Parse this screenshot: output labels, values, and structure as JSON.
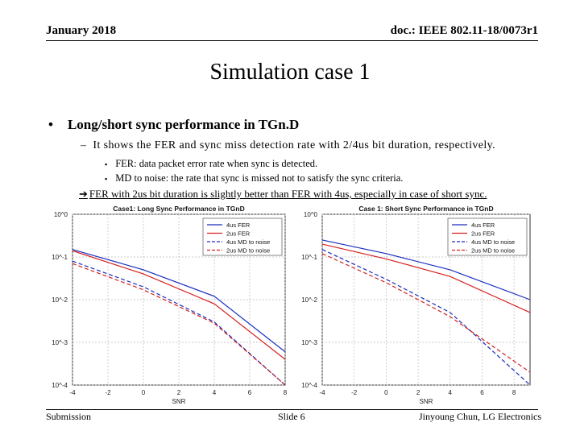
{
  "header": {
    "date": "January 2018",
    "doc_id": "doc.: IEEE 802.11-18/0073r1"
  },
  "title": "Simulation case 1",
  "bullet": {
    "marker": "•",
    "text": "Long/short sync performance in TGn.D"
  },
  "sub_bullet": {
    "marker": "–",
    "text": "It shows the FER and sync miss detection rate with 2/4us bit duration, respectively."
  },
  "sub_sub_bullets": [
    {
      "marker": "▪",
      "text": "FER: data packet error rate when sync is detected."
    },
    {
      "marker": "▪",
      "text": "MD to noise: the rate that sync is missed not to satisfy the sync criteria."
    }
  ],
  "conclusion": {
    "marker": "➔",
    "text": "FER with 2us bit duration is slightly better than FER with 4us, especially in case of short sync."
  },
  "footer": {
    "left": "Submission",
    "center": "Slide 6",
    "right": "Jinyoung Chun, LG Electronics"
  },
  "colors": {
    "blue": "#1a2fbf",
    "red": "#d42020"
  },
  "chart_data": [
    {
      "type": "line",
      "title": "Case1: Long Sync Performance in TGnD",
      "xlabel": "SNR",
      "ylabel": "",
      "y_scale": "log",
      "xlim": [
        -4,
        8
      ],
      "ylim": [
        0.0001,
        1
      ],
      "x_ticks": [
        "-4",
        "-2",
        "0",
        "2",
        "4",
        "6",
        "8"
      ],
      "y_ticks": [
        "10^0",
        "10^-1",
        "10^-2",
        "10^-3",
        "10^-4"
      ],
      "grid": true,
      "legend_position": "top-right",
      "x": [
        -4,
        0,
        4,
        8
      ],
      "series": [
        {
          "name": "4us FER",
          "color": "blue",
          "dash": false,
          "values": [
            0.15,
            0.05,
            0.012,
            0.0006
          ]
        },
        {
          "name": "2us FER",
          "color": "red",
          "dash": false,
          "values": [
            0.14,
            0.04,
            0.008,
            0.0004
          ]
        },
        {
          "name": "4us MD to noise",
          "color": "blue",
          "dash": true,
          "values": [
            0.08,
            0.02,
            0.003,
            0.0001
          ]
        },
        {
          "name": "2us MD to noise",
          "color": "red",
          "dash": true,
          "values": [
            0.07,
            0.017,
            0.0028,
            0.0001
          ]
        }
      ]
    },
    {
      "type": "line",
      "title": "Case 1: Short Sync Performance in TGnD",
      "xlabel": "SNR",
      "ylabel": "",
      "y_scale": "log",
      "xlim": [
        -4,
        9
      ],
      "ylim": [
        0.0001,
        1
      ],
      "x_ticks": [
        "-4",
        "-2",
        "0",
        "2",
        "4",
        "6",
        "8"
      ],
      "y_ticks": [
        "10^0",
        "10^-1",
        "10^-2",
        "10^-3",
        "10^-4"
      ],
      "grid": true,
      "legend_position": "top-right",
      "x": [
        -4,
        0,
        4,
        9
      ],
      "series": [
        {
          "name": "4us FER",
          "color": "blue",
          "dash": false,
          "values": [
            0.25,
            0.12,
            0.05,
            0.01
          ]
        },
        {
          "name": "2us FER",
          "color": "red",
          "dash": false,
          "values": [
            0.2,
            0.09,
            0.035,
            0.005
          ]
        },
        {
          "name": "4us MD to noise",
          "color": "blue",
          "dash": true,
          "values": [
            0.15,
            0.03,
            0.005,
            0.0001
          ]
        },
        {
          "name": "2us MD to noise",
          "color": "red",
          "dash": true,
          "values": [
            0.12,
            0.025,
            0.004,
            0.0002
          ]
        }
      ]
    }
  ]
}
